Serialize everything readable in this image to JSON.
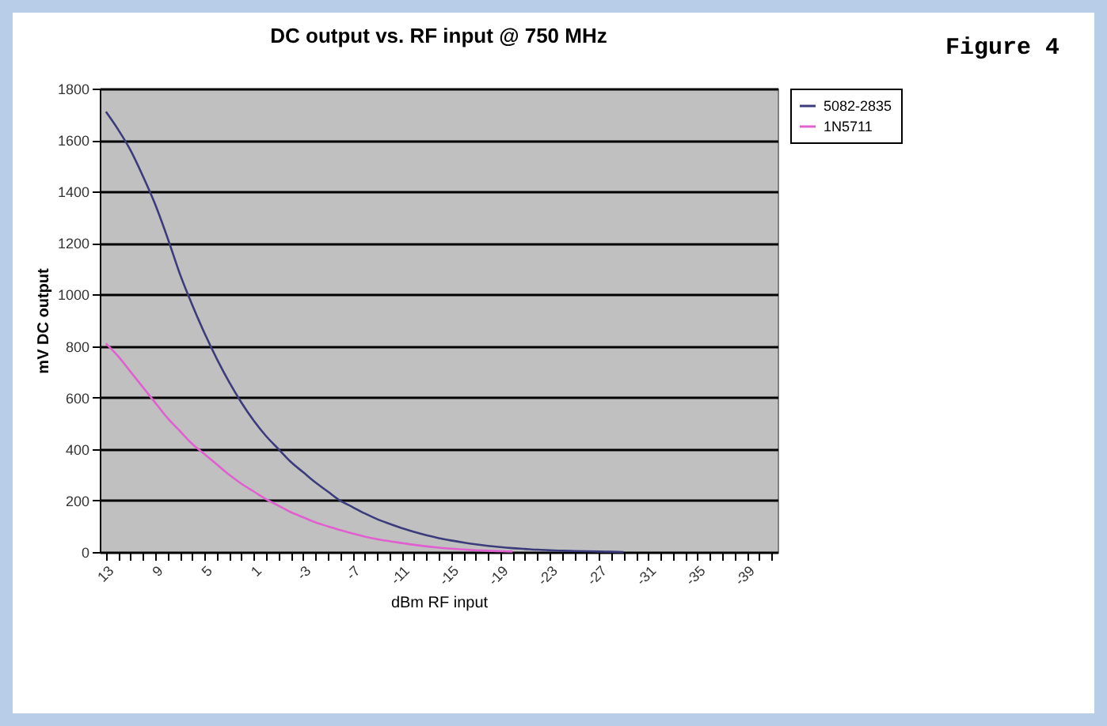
{
  "chart_data": {
    "type": "line",
    "title": "DC output vs. RF input @ 750 MHz",
    "xlabel": "dBm RF input",
    "ylabel": "mV DC output",
    "annotations": [
      "Figure 4"
    ],
    "categories": [
      "13",
      null,
      null,
      null,
      "9",
      null,
      null,
      null,
      "5",
      null,
      null,
      null,
      "1",
      null,
      null,
      null,
      "-3",
      null,
      null,
      null,
      "-7",
      null,
      null,
      null,
      "-11",
      null,
      null,
      null,
      "-15",
      null,
      null,
      null,
      "-19",
      null,
      null,
      null,
      "-23",
      null,
      null,
      null,
      "-27",
      null,
      null,
      null,
      "-31",
      null,
      null,
      null,
      "-35",
      null,
      null,
      null,
      "-39",
      null,
      null
    ],
    "series": [
      {
        "name": "5082-2835",
        "color": "#3c3c7c",
        "values": [
          1710,
          1640,
          1560,
          1460,
          1350,
          1220,
          1080,
          960,
          850,
          750,
          660,
          580,
          510,
          450,
          400,
          350,
          310,
          270,
          235,
          200,
          175,
          150,
          128,
          110,
          93,
          78,
          65,
          54,
          45,
          37,
          30,
          24,
          19,
          15,
          12,
          9,
          7,
          5,
          4,
          3,
          2,
          1,
          0,
          null,
          null,
          null,
          null,
          null,
          null,
          null,
          null,
          null,
          null,
          null,
          null
        ]
      },
      {
        "name": "1N5711",
        "color": "#e060d0",
        "values": [
          810,
          760,
          700,
          640,
          580,
          520,
          470,
          420,
          380,
          340,
          300,
          265,
          235,
          205,
          180,
          155,
          135,
          115,
          100,
          85,
          72,
          60,
          50,
          42,
          35,
          28,
          22,
          17,
          13,
          10,
          7,
          5,
          3,
          2,
          null,
          null,
          null,
          null,
          null,
          null,
          null,
          null,
          null,
          null,
          null,
          null,
          null,
          null,
          null,
          null,
          null,
          null,
          null,
          null,
          null
        ]
      }
    ],
    "ylim": [
      0,
      1800
    ],
    "yticks": [
      0,
      200,
      400,
      600,
      800,
      1000,
      1200,
      1400,
      1600,
      1800
    ],
    "grid": "y",
    "legend": "right",
    "marker": "none",
    "line_style": "solid"
  }
}
